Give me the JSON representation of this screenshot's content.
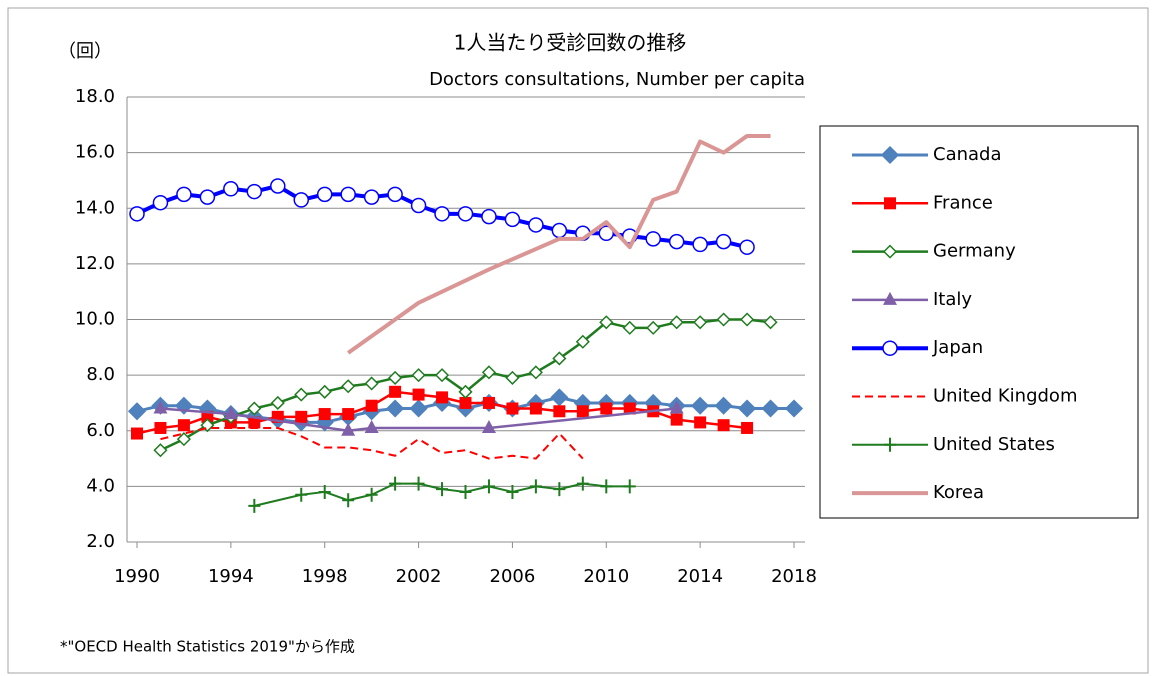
{
  "chart_data": {
    "type": "line",
    "title": "1人当たり受診回数の推移",
    "subtitle": "Doctors consultations, Number per capita",
    "y_label": "（回）",
    "note": "*\"OECD Health Statistics 2019\"から作成",
    "xlim": [
      1990,
      2018
    ],
    "xticks": [
      1990,
      1994,
      1998,
      2002,
      2006,
      2010,
      2014,
      2018
    ],
    "ylim": [
      2,
      18
    ],
    "yticks": [
      {
        "value": 2,
        "label": "2.0"
      },
      {
        "value": 4,
        "label": "4.0"
      },
      {
        "value": 6,
        "label": "6.0"
      },
      {
        "value": 8,
        "label": "8.0"
      },
      {
        "value": 10,
        "label": "10.0"
      },
      {
        "value": 12,
        "label": "12.0"
      },
      {
        "value": 14,
        "label": "14.0"
      },
      {
        "value": 16,
        "label": "16.0"
      },
      {
        "value": 18,
        "label": "18.0"
      }
    ],
    "grid": true,
    "legend": "right",
    "series": [
      {
        "name": "Canada",
        "color": "#4f81bd",
        "marker": "diamond",
        "line_width": 3,
        "x": [
          1990,
          1991,
          1992,
          1993,
          1994,
          1995,
          1996,
          1997,
          1998,
          1999,
          2000,
          2001,
          2002,
          2003,
          2004,
          2005,
          2006,
          2007,
          2008,
          2009,
          2010,
          2011,
          2012,
          2013,
          2014,
          2015,
          2016,
          2017,
          2018
        ],
        "values": [
          6.7,
          6.9,
          6.9,
          6.8,
          6.6,
          6.5,
          6.4,
          6.3,
          6.3,
          6.5,
          6.7,
          6.8,
          6.8,
          7.0,
          6.8,
          7.0,
          6.8,
          7.0,
          7.2,
          7.0,
          7.0,
          7.0,
          7.0,
          6.9,
          6.9,
          6.9,
          6.8,
          6.8,
          6.8
        ]
      },
      {
        "name": "France",
        "color": "#ff0000",
        "marker": "square",
        "line_width": 2.5,
        "x": [
          1990,
          1991,
          1992,
          1993,
          1994,
          1995,
          1996,
          1997,
          1998,
          1999,
          2000,
          2001,
          2002,
          2003,
          2004,
          2005,
          2006,
          2007,
          2008,
          2009,
          2010,
          2011,
          2012,
          2013,
          2014,
          2015,
          2016
        ],
        "values": [
          5.9,
          6.1,
          6.2,
          6.5,
          6.3,
          6.3,
          6.5,
          6.5,
          6.6,
          6.6,
          6.9,
          7.4,
          7.3,
          7.2,
          7.0,
          7.0,
          6.8,
          6.8,
          6.7,
          6.7,
          6.8,
          6.8,
          6.7,
          6.4,
          6.3,
          6.2,
          6.1
        ]
      },
      {
        "name": "Germany",
        "color": "#1e7b1e",
        "marker": "open-diamond",
        "line_width": 2.5,
        "x": [
          1991,
          1992,
          1993,
          1994,
          1995,
          1996,
          1997,
          1998,
          1999,
          2000,
          2001,
          2002,
          2003,
          2004,
          2005,
          2006,
          2007,
          2008,
          2009,
          2010,
          2011,
          2012,
          2013,
          2014,
          2015,
          2016,
          2017
        ],
        "values": [
          5.3,
          5.7,
          6.2,
          6.5,
          6.8,
          7.0,
          7.3,
          7.4,
          7.6,
          7.7,
          7.9,
          8.0,
          8.0,
          7.4,
          8.1,
          7.9,
          8.1,
          8.6,
          9.2,
          9.9,
          9.7,
          9.7,
          9.9,
          9.9,
          10.0,
          10.0,
          9.9
        ]
      },
      {
        "name": "Italy",
        "color": "#7f60a8",
        "marker": "triangle",
        "line_width": 2.5,
        "x": [
          1991,
          1994,
          1999,
          2000,
          2005,
          2013
        ],
        "values": [
          6.8,
          6.6,
          6.0,
          6.1,
          6.1,
          6.8
        ]
      },
      {
        "name": "Japan",
        "color": "#0000ff",
        "marker": "open-circle",
        "line_width": 4,
        "x": [
          1990,
          1991,
          1992,
          1993,
          1994,
          1995,
          1996,
          1997,
          1998,
          1999,
          2000,
          2001,
          2002,
          2003,
          2004,
          2005,
          2006,
          2007,
          2008,
          2009,
          2010,
          2011,
          2012,
          2013,
          2014,
          2015,
          2016
        ],
        "values": [
          13.8,
          14.2,
          14.5,
          14.4,
          14.7,
          14.6,
          14.8,
          14.3,
          14.5,
          14.5,
          14.4,
          14.5,
          14.1,
          13.8,
          13.8,
          13.7,
          13.6,
          13.4,
          13.2,
          13.1,
          13.1,
          13.0,
          12.9,
          12.8,
          12.7,
          12.8,
          12.6
        ]
      },
      {
        "name": "United Kingdom",
        "color": "#ff0000",
        "marker": "none",
        "dash": true,
        "line_width": 2,
        "x": [
          1991,
          1992,
          1993,
          1994,
          1995,
          1996,
          1997,
          1998,
          1999,
          2000,
          2001,
          2002,
          2003,
          2004,
          2005,
          2006,
          2007,
          2008,
          2009
        ],
        "values": [
          5.7,
          5.9,
          6.1,
          6.1,
          6.1,
          6.1,
          5.8,
          5.4,
          5.4,
          5.3,
          5.1,
          5.7,
          5.2,
          5.3,
          5.0,
          5.1,
          5.0,
          5.9,
          5.0
        ]
      },
      {
        "name": "United States",
        "color": "#1e7b1e",
        "marker": "plus",
        "line_width": 2,
        "x": [
          1995,
          1997,
          1998,
          1999,
          2000,
          2001,
          2002,
          2003,
          2004,
          2005,
          2006,
          2007,
          2008,
          2009,
          2010,
          2011
        ],
        "values": [
          3.3,
          3.7,
          3.8,
          3.5,
          3.7,
          4.1,
          4.1,
          3.9,
          3.8,
          4.0,
          3.8,
          4.0,
          3.9,
          4.1,
          4.0,
          4.0
        ]
      },
      {
        "name": "Korea",
        "color": "#d99694",
        "marker": "none",
        "line_width": 4,
        "x": [
          1999,
          2002,
          2005,
          2008,
          2009,
          2010,
          2011,
          2012,
          2013,
          2014,
          2015,
          2016,
          2017
        ],
        "values": [
          8.8,
          10.6,
          11.8,
          12.9,
          12.9,
          13.5,
          12.6,
          14.3,
          14.6,
          16.4,
          16.0,
          16.6,
          16.6
        ]
      }
    ]
  }
}
